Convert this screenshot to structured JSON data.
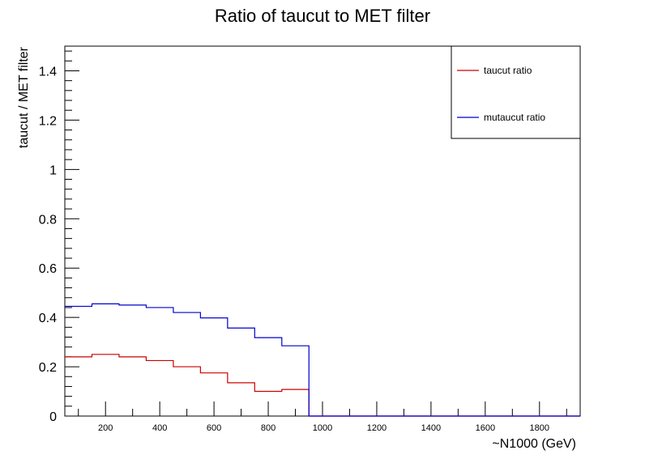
{
  "chart_data": {
    "type": "line",
    "title": "Ratio of taucut to MET filter",
    "xlabel": "~N1000 (GeV)",
    "ylabel": "taucut / MET filter",
    "xlim": [
      50,
      1950
    ],
    "ylim": [
      0,
      1.5
    ],
    "grid": false,
    "legend_position": "top-right",
    "x_ticks": [
      200,
      400,
      600,
      800,
      1000,
      1200,
      1400,
      1600,
      1800
    ],
    "y_ticks": [
      0,
      0.2,
      0.4,
      0.6,
      0.8,
      1,
      1.2,
      1.4
    ],
    "bin_edges": [
      50,
      150,
      250,
      350,
      450,
      550,
      650,
      750,
      850,
      950,
      1050,
      1150,
      1250,
      1350,
      1450,
      1550,
      1650,
      1750,
      1850,
      1950
    ],
    "series": [
      {
        "name": "taucut ratio",
        "color": "#cc0000",
        "values": [
          0.24,
          0.25,
          0.24,
          0.225,
          0.2,
          0.175,
          0.135,
          0.1,
          0.108,
          0,
          0,
          0,
          0,
          0,
          0,
          0,
          0,
          0,
          0
        ]
      },
      {
        "name": "mutaucut ratio",
        "color": "#0000cc",
        "values": [
          0.445,
          0.455,
          0.45,
          0.44,
          0.42,
          0.398,
          0.357,
          0.318,
          0.285,
          0,
          0,
          0,
          0,
          0,
          0,
          0,
          0,
          0,
          0
        ]
      }
    ]
  }
}
